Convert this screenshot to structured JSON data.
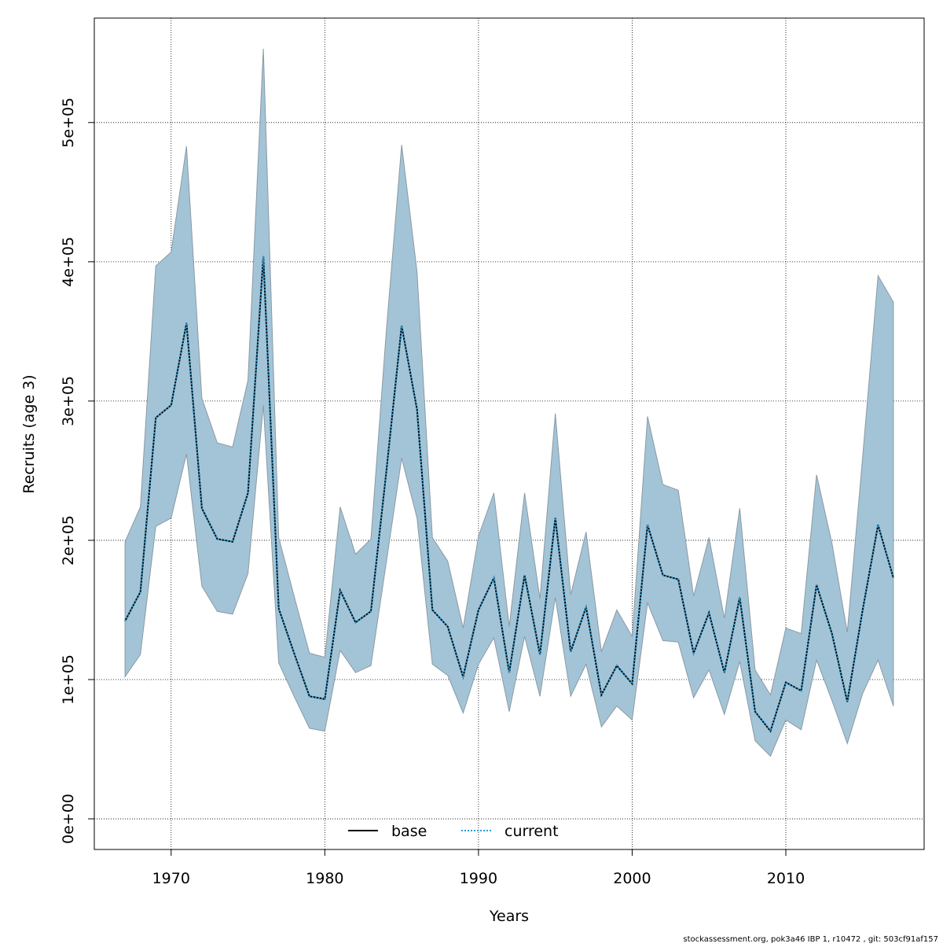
{
  "chart_data": {
    "type": "line",
    "xlabel": "Years",
    "ylabel": "Recruits (age 3)",
    "xlim": [
      1965,
      2019
    ],
    "ylim": [
      -22000,
      575000
    ],
    "grid": true,
    "x_ticks": [
      1970,
      1980,
      1990,
      2000,
      2010
    ],
    "x_tick_labels": [
      "1970",
      "1980",
      "1990",
      "2000",
      "2010"
    ],
    "y_ticks": [
      0,
      100000,
      200000,
      300000,
      400000,
      500000
    ],
    "y_tick_labels": [
      "0e+00",
      "1e+05",
      "2e+05",
      "3e+05",
      "4e+05",
      "5e+05"
    ],
    "legend": {
      "placement": "bottom-center",
      "entries": [
        "base",
        "current"
      ]
    },
    "colors": {
      "band": "#a3c4d6",
      "band_edge": "#8a9aa4",
      "base": "#000000",
      "current": "#2b9bd6"
    },
    "x": [
      1967,
      1968,
      1969,
      1970,
      1971,
      1972,
      1973,
      1974,
      1975,
      1976,
      1977,
      1978,
      1979,
      1980,
      1981,
      1982,
      1983,
      1984,
      1985,
      1986,
      1987,
      1988,
      1989,
      1990,
      1991,
      1992,
      1993,
      1994,
      1995,
      1996,
      1997,
      1998,
      1999,
      2000,
      2001,
      2002,
      2003,
      2004,
      2005,
      2006,
      2007,
      2008,
      2009,
      2010,
      2011,
      2012,
      2013,
      2014,
      2015,
      2016,
      2017
    ],
    "series": [
      {
        "name": "base",
        "values": [
          142000,
          163000,
          288000,
          297000,
          356000,
          223000,
          201000,
          199000,
          234000,
          404000,
          151000,
          119000,
          88000,
          86000,
          164000,
          141000,
          149000,
          249000,
          354000,
          294000,
          150000,
          138000,
          102000,
          150000,
          173000,
          105000,
          175000,
          118000,
          216000,
          120000,
          152000,
          89000,
          110000,
          97000,
          211000,
          175000,
          172000,
          119000,
          148000,
          105000,
          159000,
          77000,
          63000,
          98000,
          92000,
          168000,
          133000,
          84000,
          150000,
          211000,
          173000
        ]
      },
      {
        "name": "current",
        "values": [
          142000,
          163000,
          288000,
          297000,
          356000,
          223000,
          201000,
          199000,
          234000,
          404000,
          151000,
          119000,
          88000,
          86000,
          164000,
          141000,
          149000,
          249000,
          354000,
          294000,
          150000,
          138000,
          102000,
          150000,
          173000,
          105000,
          175000,
          118000,
          216000,
          120000,
          152000,
          89000,
          110000,
          97000,
          211000,
          175000,
          172000,
          119000,
          148000,
          105000,
          159000,
          77000,
          63000,
          98000,
          92000,
          168000,
          133000,
          84000,
          150000,
          211000,
          173000
        ]
      }
    ],
    "upper": [
      199000,
      224000,
      397000,
      407000,
      483000,
      302000,
      270000,
      267000,
      315000,
      553000,
      202000,
      160000,
      119000,
      116000,
      224000,
      190000,
      201000,
      350000,
      484000,
      393000,
      202000,
      185000,
      137000,
      203000,
      234000,
      138000,
      234000,
      158000,
      291000,
      161000,
      206000,
      120000,
      150000,
      131000,
      289000,
      240000,
      236000,
      160000,
      202000,
      144000,
      223000,
      107000,
      89000,
      137000,
      133000,
      247000,
      198000,
      134000,
      260000,
      390000,
      371000
    ],
    "lower": [
      102000,
      118000,
      210000,
      216000,
      262000,
      167000,
      149000,
      147000,
      176000,
      297000,
      112000,
      88000,
      65000,
      63000,
      121000,
      105000,
      110000,
      184000,
      259000,
      216000,
      111000,
      103000,
      76000,
      111000,
      130000,
      77000,
      131000,
      88000,
      159000,
      88000,
      111000,
      66000,
      81000,
      71000,
      155000,
      128000,
      127000,
      87000,
      107000,
      75000,
      113000,
      56000,
      45000,
      71000,
      64000,
      114000,
      85000,
      54000,
      90000,
      114000,
      81000
    ]
  },
  "footer": "stockassessment.org, pok3a46  IBP  1, r10472 , git: 503cf91af157"
}
